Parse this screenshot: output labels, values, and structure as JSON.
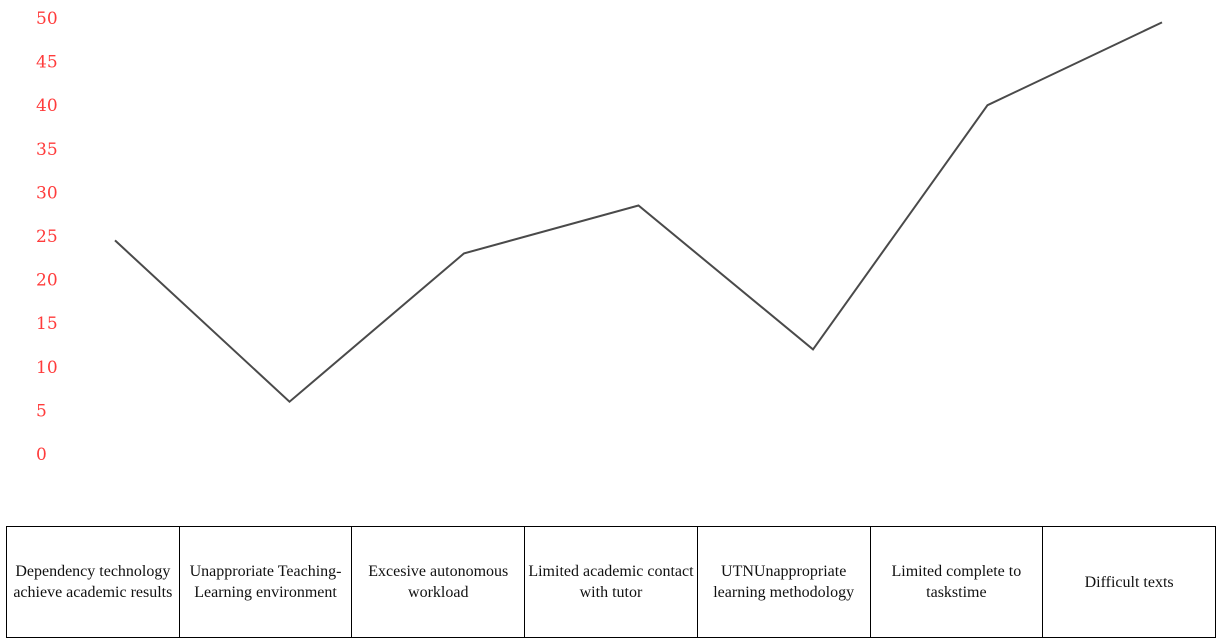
{
  "chart_data": {
    "type": "line",
    "categories": [
      "Dependency technology achieve academic results",
      "Unapproriate Teaching-Learning environment",
      "Excesive autonomous workload",
      "Limited academic contact with tutor",
      "UTNUnappropriate learning methodology",
      "Limited complete to taskstime",
      "Difficult texts"
    ],
    "values": [
      24.5,
      6,
      23,
      28.5,
      12,
      40,
      49.5
    ],
    "yticks": [
      "0",
      "5",
      "10",
      "15",
      "20",
      "25",
      "30",
      "35",
      "40",
      "45",
      "50"
    ],
    "ylim": [
      0,
      50
    ],
    "title": "",
    "xlabel": "",
    "ylabel": "",
    "grid": false,
    "colors": {
      "line": "#4a4a4a",
      "ytick": "#ff3b3b",
      "table_border": "#000000"
    }
  }
}
